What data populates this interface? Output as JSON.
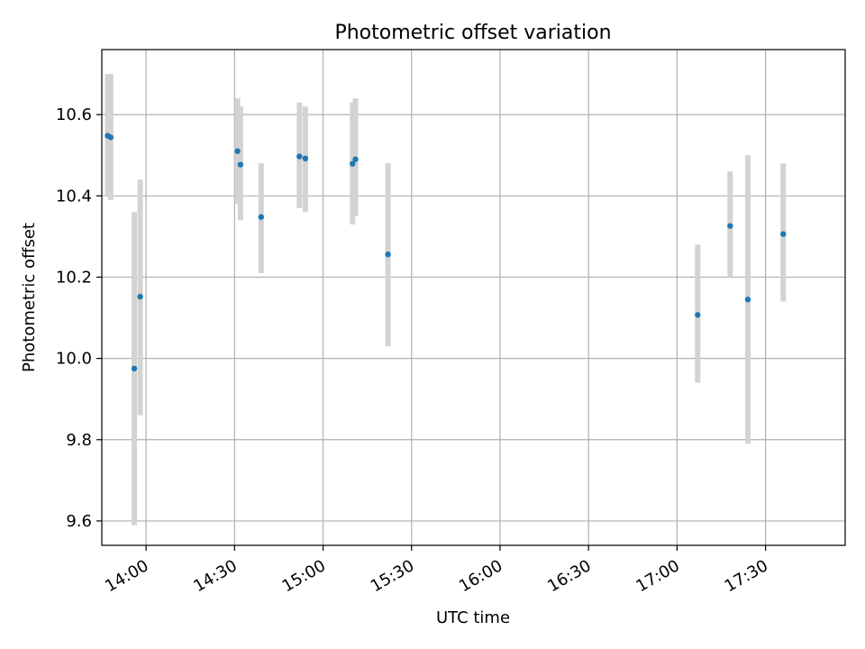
{
  "chart_data": {
    "type": "scatter",
    "title": "Photometric offset variation",
    "xlabel": "UTC time",
    "ylabel": "Photometric offset",
    "x_unit": "time (HH:MM)",
    "xlim": [
      "13:45",
      "17:57"
    ],
    "ylim": [
      9.54,
      10.76
    ],
    "x_ticks": [
      "14:00",
      "14:30",
      "15:00",
      "15:30",
      "16:00",
      "16:30",
      "17:00",
      "17:30"
    ],
    "y_ticks": [
      "9.6",
      "9.8",
      "10.0",
      "10.2",
      "10.4",
      "10.6"
    ],
    "grid": true,
    "marker_color": "#1f77b4",
    "errorbar_color": "#d3d3d3",
    "points": [
      {
        "x": "13:47",
        "y": 10.548,
        "lo": 10.4,
        "hi": 10.7
      },
      {
        "x": "13:48",
        "y": 10.544,
        "lo": 10.39,
        "hi": 10.7
      },
      {
        "x": "13:56",
        "y": 9.975,
        "lo": 9.59,
        "hi": 10.36
      },
      {
        "x": "13:58",
        "y": 10.152,
        "lo": 9.86,
        "hi": 10.44
      },
      {
        "x": "14:31",
        "y": 10.51,
        "lo": 10.38,
        "hi": 10.64
      },
      {
        "x": "14:32",
        "y": 10.477,
        "lo": 10.34,
        "hi": 10.62
      },
      {
        "x": "14:39",
        "y": 10.348,
        "lo": 10.21,
        "hi": 10.48
      },
      {
        "x": "14:52",
        "y": 10.497,
        "lo": 10.37,
        "hi": 10.63
      },
      {
        "x": "14:54",
        "y": 10.492,
        "lo": 10.36,
        "hi": 10.62
      },
      {
        "x": "15:10",
        "y": 10.479,
        "lo": 10.33,
        "hi": 10.63
      },
      {
        "x": "15:11",
        "y": 10.49,
        "lo": 10.35,
        "hi": 10.64
      },
      {
        "x": "15:22",
        "y": 10.256,
        "lo": 10.03,
        "hi": 10.48
      },
      {
        "x": "17:07",
        "y": 10.107,
        "lo": 9.94,
        "hi": 10.28
      },
      {
        "x": "17:18",
        "y": 10.326,
        "lo": 10.2,
        "hi": 10.46
      },
      {
        "x": "17:24",
        "y": 10.145,
        "lo": 9.79,
        "hi": 10.5
      },
      {
        "x": "17:36",
        "y": 10.306,
        "lo": 10.14,
        "hi": 10.48
      }
    ]
  }
}
